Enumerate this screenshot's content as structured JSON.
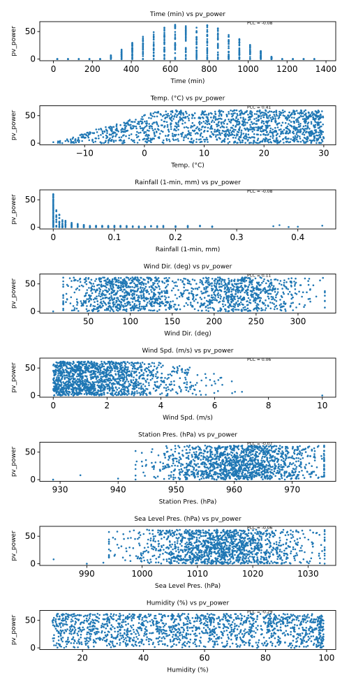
{
  "chart_data": [
    {
      "type": "scatter",
      "title": "Time (min) vs pv_power",
      "xlabel": "Time (min)",
      "ylabel": "pv_power",
      "pcc_label": "PCC = -0.08",
      "xlim": [
        -70,
        1450
      ],
      "ylim": [
        -3,
        68
      ],
      "xticks": [
        0,
        200,
        400,
        600,
        800,
        1000,
        1200,
        1400
      ],
      "yticks": [
        0,
        50
      ],
      "color": "#1f77b4",
      "distribution": "time",
      "x_range": [
        20,
        1390
      ],
      "y_range": [
        0,
        63
      ]
    },
    {
      "type": "scatter",
      "title": "Temp. (°C) vs pv_power",
      "xlabel": "Temp. (°C)",
      "ylabel": "pv_power",
      "pcc_label": "PCC = 0.41",
      "xlim": [
        -17.5,
        32
      ],
      "ylim": [
        -3,
        68
      ],
      "xticks": [
        -10,
        0,
        10,
        20,
        30
      ],
      "yticks": [
        0,
        50
      ],
      "color": "#1f77b4",
      "distribution": "temp",
      "x_range": [
        -15.5,
        30
      ],
      "y_range": [
        0,
        63
      ]
    },
    {
      "type": "scatter",
      "title": "Rainfall (1-min, mm) vs pv_power",
      "xlabel": "Rainfall (1-min, mm)",
      "ylabel": "pv_power",
      "pcc_label": "PCC = -0.08",
      "xlim": [
        -0.022,
        0.462
      ],
      "ylim": [
        -3,
        68
      ],
      "xticks": [
        0.0,
        0.1,
        0.2,
        0.3,
        0.4
      ],
      "yticks": [
        0,
        50
      ],
      "color": "#1f77b4",
      "distribution": "rain",
      "x_range": [
        0,
        0.44
      ],
      "y_range": [
        0,
        63
      ]
    },
    {
      "type": "scatter",
      "title": "Wind Dir. (deg) vs pv_power",
      "xlabel": "Wind Dir. (deg)",
      "ylabel": "pv_power",
      "pcc_label": "PCC = 0.11",
      "xlim": [
        -8,
        345
      ],
      "ylim": [
        -3,
        68
      ],
      "xticks": [
        50,
        100,
        150,
        200,
        250,
        300
      ],
      "yticks": [
        0,
        50
      ],
      "color": "#1f77b4",
      "distribution": "wdir",
      "x_range": [
        8,
        332
      ],
      "y_range": [
        0,
        63
      ]
    },
    {
      "type": "scatter",
      "title": "Wind Spd. (m/s) vs pv_power",
      "xlabel": "Wind Spd. (m/s)",
      "ylabel": "pv_power",
      "pcc_label": "PCC = 0.06",
      "xlim": [
        -0.5,
        10.5
      ],
      "ylim": [
        -3,
        68
      ],
      "xticks": [
        0,
        2,
        4,
        6,
        8,
        10
      ],
      "yticks": [
        0,
        50
      ],
      "color": "#1f77b4",
      "distribution": "wspd",
      "x_range": [
        0,
        10
      ],
      "y_range": [
        0,
        63
      ]
    },
    {
      "type": "scatter",
      "title": "Station Pres. (hPa) vs pv_power",
      "xlabel": "Station Pres. (hPa)",
      "ylabel": "pv_power",
      "pcc_label": "PCC = -0.07",
      "xlim": [
        926.5,
        977.5
      ],
      "ylim": [
        -3,
        68
      ],
      "xticks": [
        930,
        940,
        950,
        960,
        970
      ],
      "yticks": [
        0,
        50
      ],
      "color": "#1f77b4",
      "distribution": "spres",
      "x_range": [
        928.5,
        975.5
      ],
      "y_range": [
        0,
        63
      ]
    },
    {
      "type": "scatter",
      "title": "Sea Level Pres. (hPa) vs pv_power",
      "xlabel": "Sea Level Pres. (hPa)",
      "ylabel": "pv_power",
      "pcc_label": "PCC = -0.06",
      "xlim": [
        981.5,
        1035
      ],
      "ylim": [
        -3,
        68
      ],
      "xticks": [
        990,
        1000,
        1010,
        1020,
        1030
      ],
      "yticks": [
        0,
        50
      ],
      "color": "#1f77b4",
      "distribution": "slp",
      "x_range": [
        983.5,
        1033
      ],
      "y_range": [
        0,
        63
      ]
    },
    {
      "type": "scatter",
      "title": "Humidity (%) vs pv_power",
      "xlabel": "Humidity (%)",
      "ylabel": "pv_power",
      "pcc_label": "PCC = -0.29",
      "xlim": [
        6,
        103
      ],
      "ylim": [
        -3,
        68
      ],
      "xticks": [
        20,
        40,
        60,
        80,
        100
      ],
      "yticks": [
        0,
        50
      ],
      "color": "#1f77b4",
      "distribution": "hum",
      "x_range": [
        10,
        99
      ],
      "y_range": [
        0,
        63
      ]
    }
  ]
}
